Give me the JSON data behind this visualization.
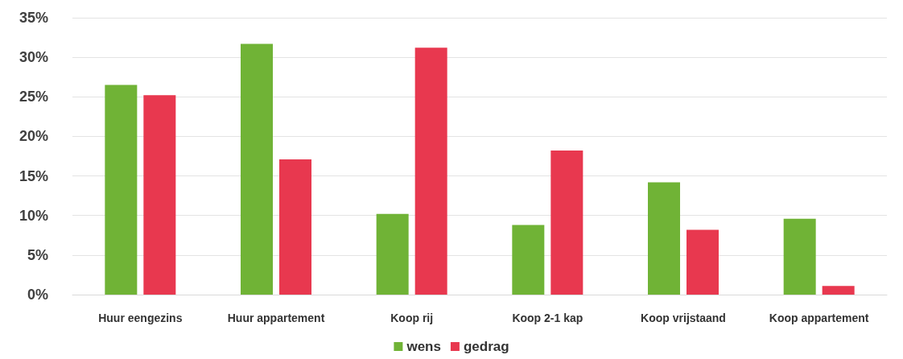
{
  "chart_data": {
    "type": "bar",
    "categories": [
      "Huur eengezins",
      "Huur appartement",
      "Koop rij",
      "Koop 2-1 kap",
      "Koop vrijstaand",
      "Koop appartement"
    ],
    "series": [
      {
        "name": "wens",
        "color": "#70b336",
        "values": [
          26.5,
          31.7,
          10.2,
          8.8,
          14.2,
          9.6
        ]
      },
      {
        "name": "gedrag",
        "color": "#e8384f",
        "values": [
          25.2,
          17.1,
          31.2,
          18.2,
          8.2,
          1.1
        ]
      }
    ],
    "ylim": [
      0,
      35
    ],
    "yticks": [
      {
        "value": 0,
        "label": "0%"
      },
      {
        "value": 5,
        "label": "5%"
      },
      {
        "value": 10,
        "label": "10%"
      },
      {
        "value": 15,
        "label": "15%"
      },
      {
        "value": 20,
        "label": "20%"
      },
      {
        "value": 25,
        "label": "25%"
      },
      {
        "value": 30,
        "label": "30%"
      },
      {
        "value": 35,
        "label": "35%"
      }
    ],
    "grid": "y",
    "legend": "bottom"
  }
}
